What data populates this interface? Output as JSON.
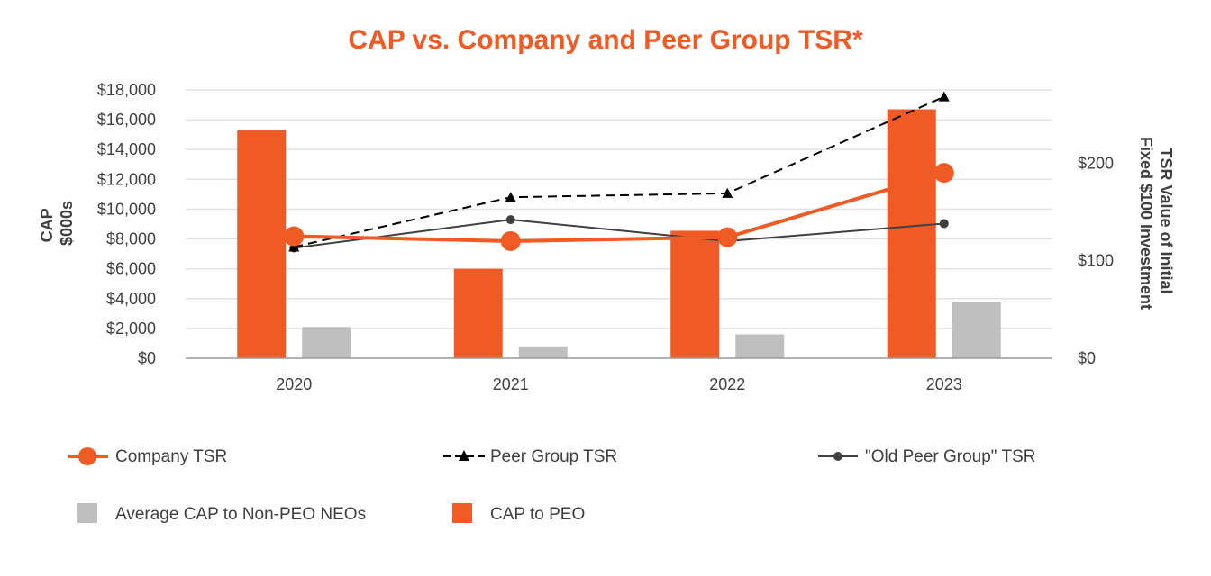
{
  "chart_data": {
    "type": "bar",
    "title": "CAP vs. Company and Peer Group TSR*",
    "categories": [
      "2020",
      "2021",
      "2022",
      "2023"
    ],
    "ylabel_left": [
      "CAP",
      "$000s"
    ],
    "ylabel_right": [
      "TSR Value of Initial",
      "Fixed $100 Investment"
    ],
    "ylim_left": [
      0,
      18000
    ],
    "ylim_right": [
      0,
      275
    ],
    "left_ticks": [
      0,
      2000,
      4000,
      6000,
      8000,
      10000,
      12000,
      14000,
      16000,
      18000
    ],
    "left_tick_labels": [
      "$0",
      "$2,000",
      "$4,000",
      "$6,000",
      "$8,000",
      "$10,000",
      "$12,000",
      "$14,000",
      "$16,000",
      "$18,000"
    ],
    "right_ticks": [
      0,
      100,
      200
    ],
    "right_tick_labels": [
      "$0",
      "$100",
      "$200"
    ],
    "grid": true,
    "bar_series": [
      {
        "name": "CAP to PEO",
        "color": "#f05a24",
        "values": [
          15300,
          6000,
          8550,
          16700
        ]
      },
      {
        "name": "Average CAP to Non-PEO NEOs",
        "color": "#bfbfbf",
        "values": [
          2100,
          800,
          1600,
          3800
        ]
      }
    ],
    "line_series": [
      {
        "name": "Company TSR",
        "color": "#f05a24",
        "marker": "circle-large",
        "values": [
          125,
          120,
          124,
          190
        ]
      },
      {
        "name": "Peer Group TSR",
        "color": "#000000",
        "marker": "triangle",
        "style": "dashed",
        "values": [
          114,
          165,
          169,
          268
        ]
      },
      {
        "name": "\"Old Peer Group\" TSR",
        "color": "#404040",
        "marker": "dot",
        "values": [
          113,
          142,
          120,
          138
        ]
      }
    ],
    "legend": [
      {
        "label": "Company TSR",
        "kind": "line-circle"
      },
      {
        "label": "Peer Group TSR",
        "kind": "line-triangle"
      },
      {
        "label": "\"Old Peer Group\" TSR",
        "kind": "line-dot"
      },
      {
        "label": "Average CAP to Non-PEO NEOs",
        "kind": "square-gray"
      },
      {
        "label": "CAP to PEO",
        "kind": "square-orange"
      }
    ]
  }
}
